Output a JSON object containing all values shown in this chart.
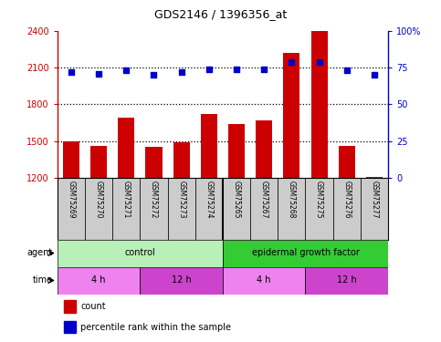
{
  "title": "GDS2146 / 1396356_at",
  "samples": [
    "GSM75269",
    "GSM75270",
    "GSM75271",
    "GSM75272",
    "GSM75273",
    "GSM75274",
    "GSM75265",
    "GSM75267",
    "GSM75268",
    "GSM75275",
    "GSM75276",
    "GSM75277"
  ],
  "counts": [
    1500,
    1460,
    1690,
    1450,
    1490,
    1720,
    1640,
    1670,
    2220,
    2400,
    1460,
    1210
  ],
  "percentiles": [
    72,
    71,
    73,
    70,
    72,
    74,
    74,
    74,
    79,
    79,
    73,
    70
  ],
  "ylim_left": [
    1200,
    2400
  ],
  "ylim_right": [
    0,
    100
  ],
  "yticks_left": [
    1200,
    1500,
    1800,
    2100,
    2400
  ],
  "yticks_right": [
    0,
    25,
    50,
    75,
    100
  ],
  "bar_color": "#cc0000",
  "dot_color": "#0000cc",
  "agent_groups": [
    {
      "label": "control",
      "start": 0,
      "end": 6,
      "color": "#b8f0b8"
    },
    {
      "label": "epidermal growth factor",
      "start": 6,
      "end": 12,
      "color": "#33cc33"
    }
  ],
  "time_groups": [
    {
      "label": "4 h",
      "start": 0,
      "end": 3,
      "color": "#ee82ee"
    },
    {
      "label": "12 h",
      "start": 3,
      "end": 6,
      "color": "#cc44cc"
    },
    {
      "label": "4 h",
      "start": 6,
      "end": 9,
      "color": "#ee82ee"
    },
    {
      "label": "12 h",
      "start": 9,
      "end": 12,
      "color": "#cc44cc"
    }
  ],
  "legend_count_color": "#cc0000",
  "legend_dot_color": "#0000cc",
  "label_area_color": "#cccccc",
  "plot_bg_color": "#ffffff",
  "dotted_line_color": "#000000"
}
